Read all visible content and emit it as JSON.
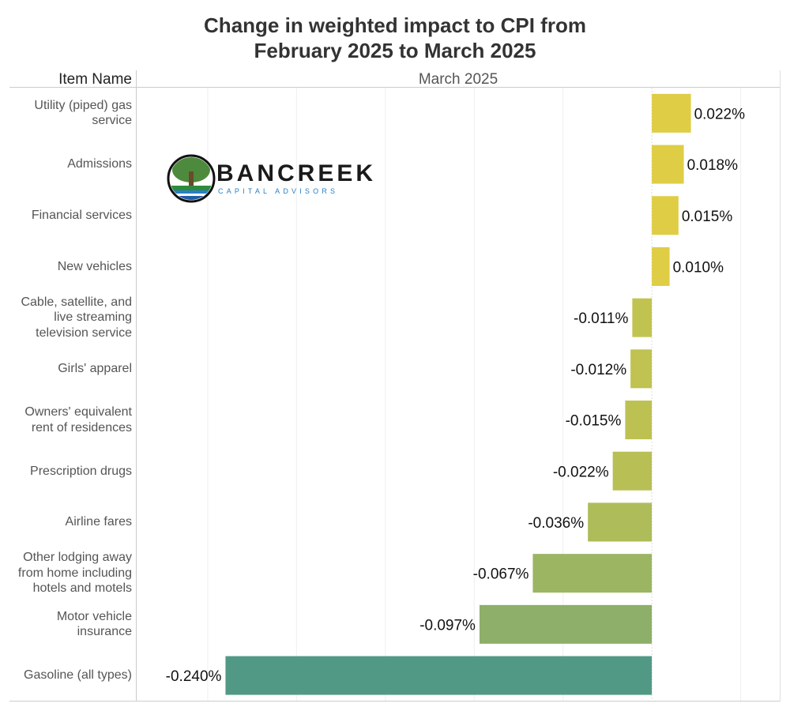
{
  "title_line1": "Change in weighted impact to CPI from",
  "title_line2": "February 2025 to March 2025",
  "row_header": "Item Name",
  "column_header": "March 2025",
  "logo": {
    "name": "BANCREEK",
    "tagline": "CAPITAL ADVISORS",
    "icon": "tree-icon"
  },
  "chart_data": {
    "type": "bar",
    "orientation": "horizontal",
    "title": "Change in weighted impact to CPI from February 2025 to March 2025",
    "column_header": "March 2025",
    "categories": [
      "Utility (piped) gas service",
      "Admissions",
      "Financial services",
      "New vehicles",
      "Cable, satellite, and live streaming television service",
      "Girls' apparel",
      "Owners' equivalent rent of residences",
      "Prescription drugs",
      "Airline fares",
      "Other lodging away from home including hotels and motels",
      "Motor vehicle insurance",
      "Gasoline (all types)"
    ],
    "category_lines": [
      [
        "Utility (piped) gas",
        "service"
      ],
      [
        "Admissions"
      ],
      [
        "Financial services"
      ],
      [
        "New vehicles"
      ],
      [
        "Cable, satellite, and",
        "live streaming",
        "television service"
      ],
      [
        "Girls' apparel"
      ],
      [
        "Owners' equivalent",
        "rent of residences"
      ],
      [
        "Prescription drugs"
      ],
      [
        "Airline fares"
      ],
      [
        "Other lodging away",
        "from home including",
        "hotels and motels"
      ],
      [
        "Motor vehicle",
        "insurance"
      ],
      [
        "Gasoline (all types)"
      ]
    ],
    "values": [
      0.022,
      0.018,
      0.015,
      0.01,
      -0.011,
      -0.012,
      -0.015,
      -0.022,
      -0.036,
      -0.067,
      -0.097,
      -0.24
    ],
    "value_labels": [
      "0.022%",
      "0.018%",
      "0.015%",
      "0.010%",
      "-0.011%",
      "-0.012%",
      "-0.015%",
      "-0.022%",
      "-0.036%",
      "-0.067%",
      "-0.097%",
      "-0.240%"
    ],
    "unit": "%",
    "xlim": [
      -0.29,
      0.072
    ],
    "gridlines": [
      -0.25,
      -0.2,
      -0.15,
      -0.1,
      -0.05,
      0,
      0.05
    ],
    "color_scale": {
      "positive": "#dfcd45",
      "small_negative": "#cfc84a",
      "large_negative": "#529985"
    },
    "grid": true,
    "legend": "none"
  }
}
